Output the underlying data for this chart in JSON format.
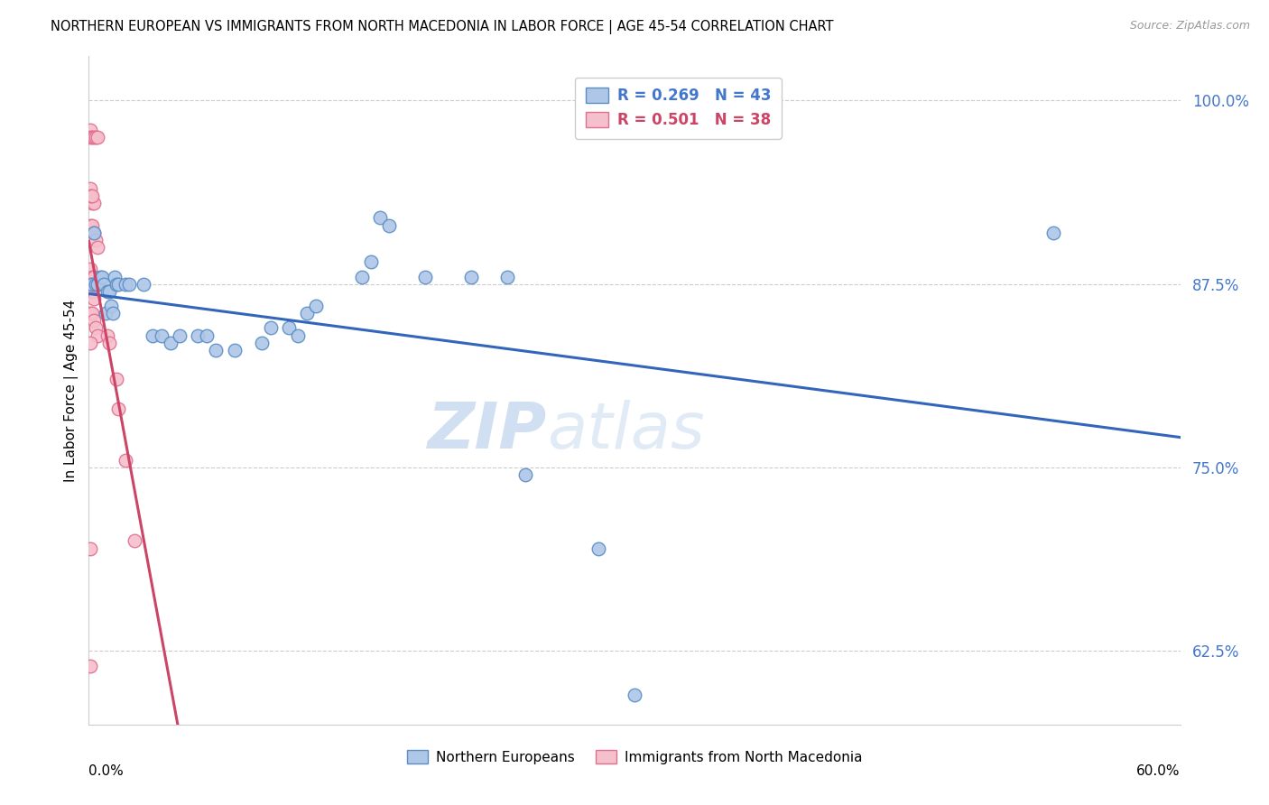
{
  "title": "NORTHERN EUROPEAN VS IMMIGRANTS FROM NORTH MACEDONIA IN LABOR FORCE | AGE 45-54 CORRELATION CHART",
  "source": "Source: ZipAtlas.com",
  "ylabel": "In Labor Force | Age 45-54",
  "watermark_zip": "ZIP",
  "watermark_atlas": "atlas",
  "xlim": [
    0.0,
    0.6
  ],
  "ylim": [
    0.575,
    1.03
  ],
  "legend_blue_r": "R = 0.269",
  "legend_blue_n": "N = 43",
  "legend_pink_r": "R = 0.501",
  "legend_pink_n": "N = 38",
  "blue_scatter": [
    [
      0.002,
      0.875
    ],
    [
      0.003,
      0.91
    ],
    [
      0.004,
      0.875
    ],
    [
      0.005,
      0.875
    ],
    [
      0.006,
      0.88
    ],
    [
      0.007,
      0.88
    ],
    [
      0.008,
      0.875
    ],
    [
      0.009,
      0.855
    ],
    [
      0.01,
      0.87
    ],
    [
      0.011,
      0.87
    ],
    [
      0.012,
      0.86
    ],
    [
      0.013,
      0.855
    ],
    [
      0.014,
      0.88
    ],
    [
      0.015,
      0.875
    ],
    [
      0.016,
      0.875
    ],
    [
      0.02,
      0.875
    ],
    [
      0.022,
      0.875
    ],
    [
      0.03,
      0.875
    ],
    [
      0.035,
      0.84
    ],
    [
      0.04,
      0.84
    ],
    [
      0.045,
      0.835
    ],
    [
      0.05,
      0.84
    ],
    [
      0.06,
      0.84
    ],
    [
      0.065,
      0.84
    ],
    [
      0.07,
      0.83
    ],
    [
      0.08,
      0.83
    ],
    [
      0.095,
      0.835
    ],
    [
      0.1,
      0.845
    ],
    [
      0.11,
      0.845
    ],
    [
      0.115,
      0.84
    ],
    [
      0.12,
      0.855
    ],
    [
      0.125,
      0.86
    ],
    [
      0.15,
      0.88
    ],
    [
      0.155,
      0.89
    ],
    [
      0.16,
      0.92
    ],
    [
      0.165,
      0.915
    ],
    [
      0.185,
      0.88
    ],
    [
      0.21,
      0.88
    ],
    [
      0.23,
      0.88
    ],
    [
      0.24,
      0.745
    ],
    [
      0.28,
      0.695
    ],
    [
      0.53,
      0.91
    ],
    [
      0.3,
      0.595
    ]
  ],
  "pink_scatter": [
    [
      0.001,
      0.98
    ],
    [
      0.001,
      0.975
    ],
    [
      0.002,
      0.975
    ],
    [
      0.003,
      0.975
    ],
    [
      0.004,
      0.975
    ],
    [
      0.005,
      0.975
    ],
    [
      0.001,
      0.94
    ],
    [
      0.002,
      0.93
    ],
    [
      0.003,
      0.93
    ],
    [
      0.001,
      0.915
    ],
    [
      0.002,
      0.915
    ],
    [
      0.003,
      0.91
    ],
    [
      0.004,
      0.905
    ],
    [
      0.005,
      0.9
    ],
    [
      0.001,
      0.885
    ],
    [
      0.002,
      0.88
    ],
    [
      0.003,
      0.88
    ],
    [
      0.004,
      0.875
    ],
    [
      0.001,
      0.87
    ],
    [
      0.002,
      0.87
    ],
    [
      0.003,
      0.865
    ],
    [
      0.001,
      0.855
    ],
    [
      0.002,
      0.855
    ],
    [
      0.003,
      0.85
    ],
    [
      0.004,
      0.845
    ],
    [
      0.005,
      0.84
    ],
    [
      0.01,
      0.84
    ],
    [
      0.011,
      0.835
    ],
    [
      0.015,
      0.81
    ],
    [
      0.016,
      0.79
    ],
    [
      0.02,
      0.755
    ],
    [
      0.025,
      0.7
    ],
    [
      0.001,
      0.835
    ],
    [
      0.001,
      0.875
    ],
    [
      0.001,
      0.935
    ],
    [
      0.002,
      0.935
    ],
    [
      0.001,
      0.695
    ],
    [
      0.001,
      0.615
    ]
  ],
  "blue_color": "#aec6e8",
  "blue_edge": "#5b8ec4",
  "pink_color": "#f5bfcc",
  "pink_edge": "#e07090",
  "blue_line_color": "#3366bb",
  "pink_line_color": "#cc4466",
  "marker_size": 110,
  "grid_color": "#cccccc",
  "ytick_vals": [
    0.625,
    0.75,
    0.875,
    1.0
  ],
  "ytick_labels": [
    "62.5%",
    "75.0%",
    "87.5%",
    "100.0%"
  ],
  "xtick_vals": [
    0.0,
    0.1,
    0.2,
    0.3,
    0.4,
    0.5,
    0.6
  ],
  "bottom_legend_labels": [
    "Northern Europeans",
    "Immigrants from North Macedonia"
  ]
}
